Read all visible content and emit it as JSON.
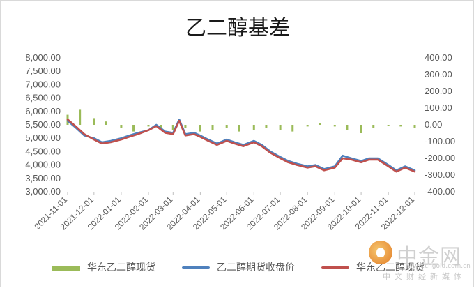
{
  "chart_data": {
    "type": "line",
    "title": "乙二醇基差",
    "y_left": {
      "min": 3000,
      "max": 8000,
      "step": 500,
      "tick_labels": [
        "3,000.00",
        "3,500.00",
        "4,000.00",
        "4,500.00",
        "5,000.00",
        "5,500.00",
        "6,000.00",
        "6,500.00",
        "7,000.00",
        "7,500.00",
        "8,000.00"
      ]
    },
    "y_right": {
      "min": -400,
      "max": 400,
      "step": 100,
      "tick_labels": [
        "-400.00",
        "-300.00",
        "-200.00",
        "-100.00",
        "0.00",
        "100.00",
        "200.00",
        "300.00",
        "400.00"
      ]
    },
    "x_axis": {
      "range": [
        "2021-11-01",
        "2022-12-01"
      ],
      "tick_labels": [
        "2021-11-01",
        "2021-12-01",
        "2022-01-01",
        "2022-02-01",
        "2022-03-01",
        "2022-04-01",
        "2022-05-01",
        "2022-06-01",
        "2022-07-01",
        "2022-08-01",
        "2022-09-01",
        "2022-10-01",
        "2022-11-01",
        "2022-12-01"
      ]
    },
    "grid": false,
    "legend_position": "bottom",
    "series": [
      {
        "name": "华东乙二醇现货",
        "type": "bar",
        "axis": "right",
        "color": "#9bbb59",
        "x": [
          "2021-11-01",
          "2021-11-15",
          "2021-12-01",
          "2021-12-15",
          "2022-01-01",
          "2022-01-15",
          "2022-02-01",
          "2022-02-15",
          "2022-03-01",
          "2022-03-15",
          "2022-04-01",
          "2022-04-15",
          "2022-05-01",
          "2022-05-15",
          "2022-06-01",
          "2022-06-15",
          "2022-07-01",
          "2022-07-15",
          "2022-08-01",
          "2022-08-15",
          "2022-09-01",
          "2022-09-15",
          "2022-10-01",
          "2022-10-15",
          "2022-11-01",
          "2022-11-15",
          "2022-12-01"
        ],
        "y": [
          60,
          90,
          40,
          20,
          -20,
          -40,
          -10,
          -30,
          -30,
          -20,
          -40,
          -30,
          -20,
          -40,
          -30,
          -20,
          -30,
          -40,
          -10,
          10,
          -10,
          -30,
          -50,
          -20,
          0,
          -10,
          -20
        ]
      },
      {
        "name": "乙二醇期货收盘价",
        "type": "line",
        "axis": "left",
        "color": "#4f81bd",
        "x": [
          "2021-11-01",
          "2021-11-10",
          "2021-11-20",
          "2021-12-01",
          "2021-12-10",
          "2021-12-20",
          "2022-01-01",
          "2022-01-10",
          "2022-01-20",
          "2022-02-01",
          "2022-02-10",
          "2022-02-20",
          "2022-03-01",
          "2022-03-08",
          "2022-03-15",
          "2022-03-25",
          "2022-04-01",
          "2022-04-10",
          "2022-04-20",
          "2022-05-01",
          "2022-05-10",
          "2022-05-20",
          "2022-06-01",
          "2022-06-10",
          "2022-06-20",
          "2022-07-01",
          "2022-07-10",
          "2022-07-20",
          "2022-08-01",
          "2022-08-10",
          "2022-08-20",
          "2022-09-01",
          "2022-09-10",
          "2022-09-20",
          "2022-10-01",
          "2022-10-10",
          "2022-10-20",
          "2022-11-01",
          "2022-11-10",
          "2022-11-20",
          "2022-12-01"
        ],
        "y": [
          5650,
          5400,
          5100,
          5000,
          4850,
          4900,
          5000,
          5100,
          5200,
          5300,
          5500,
          5250,
          5200,
          5700,
          5150,
          5200,
          5100,
          4950,
          4800,
          4950,
          4850,
          4750,
          4900,
          4750,
          4500,
          4300,
          4150,
          4050,
          3950,
          4000,
          3850,
          3950,
          4350,
          4250,
          4150,
          4250,
          4250,
          4000,
          3800,
          3950,
          3800
        ]
      },
      {
        "name": "华东乙二醇现货",
        "type": "line",
        "axis": "left",
        "color": "#c0504d",
        "x": [
          "2021-11-01",
          "2021-11-10",
          "2021-11-20",
          "2021-12-01",
          "2021-12-10",
          "2021-12-20",
          "2022-01-01",
          "2022-01-10",
          "2022-01-20",
          "2022-02-01",
          "2022-02-10",
          "2022-02-20",
          "2022-03-01",
          "2022-03-08",
          "2022-03-15",
          "2022-03-25",
          "2022-04-01",
          "2022-04-10",
          "2022-04-20",
          "2022-05-01",
          "2022-05-10",
          "2022-05-20",
          "2022-06-01",
          "2022-06-10",
          "2022-06-20",
          "2022-07-01",
          "2022-07-10",
          "2022-07-20",
          "2022-08-01",
          "2022-08-10",
          "2022-08-20",
          "2022-09-01",
          "2022-09-10",
          "2022-09-20",
          "2022-10-01",
          "2022-10-10",
          "2022-10-20",
          "2022-11-01",
          "2022-11-10",
          "2022-11-20",
          "2022-12-01"
        ],
        "y": [
          5700,
          5450,
          5150,
          4950,
          4800,
          4850,
          4950,
          5050,
          5150,
          5300,
          5450,
          5200,
          5150,
          5650,
          5100,
          5150,
          5050,
          4900,
          4750,
          4900,
          4800,
          4700,
          4850,
          4700,
          4450,
          4250,
          4100,
          4000,
          3900,
          3950,
          3800,
          3900,
          4250,
          4200,
          4100,
          4200,
          4200,
          3950,
          3750,
          3900,
          3750
        ]
      }
    ]
  },
  "legend": {
    "items": [
      "华东乙二醇现货",
      "乙二醇期货收盘价",
      "华东乙二醇现货"
    ]
  },
  "watermark": {
    "logo_text": "中金网",
    "url": "www.cngold.com.cn",
    "sub": "中文财经新媒体"
  }
}
